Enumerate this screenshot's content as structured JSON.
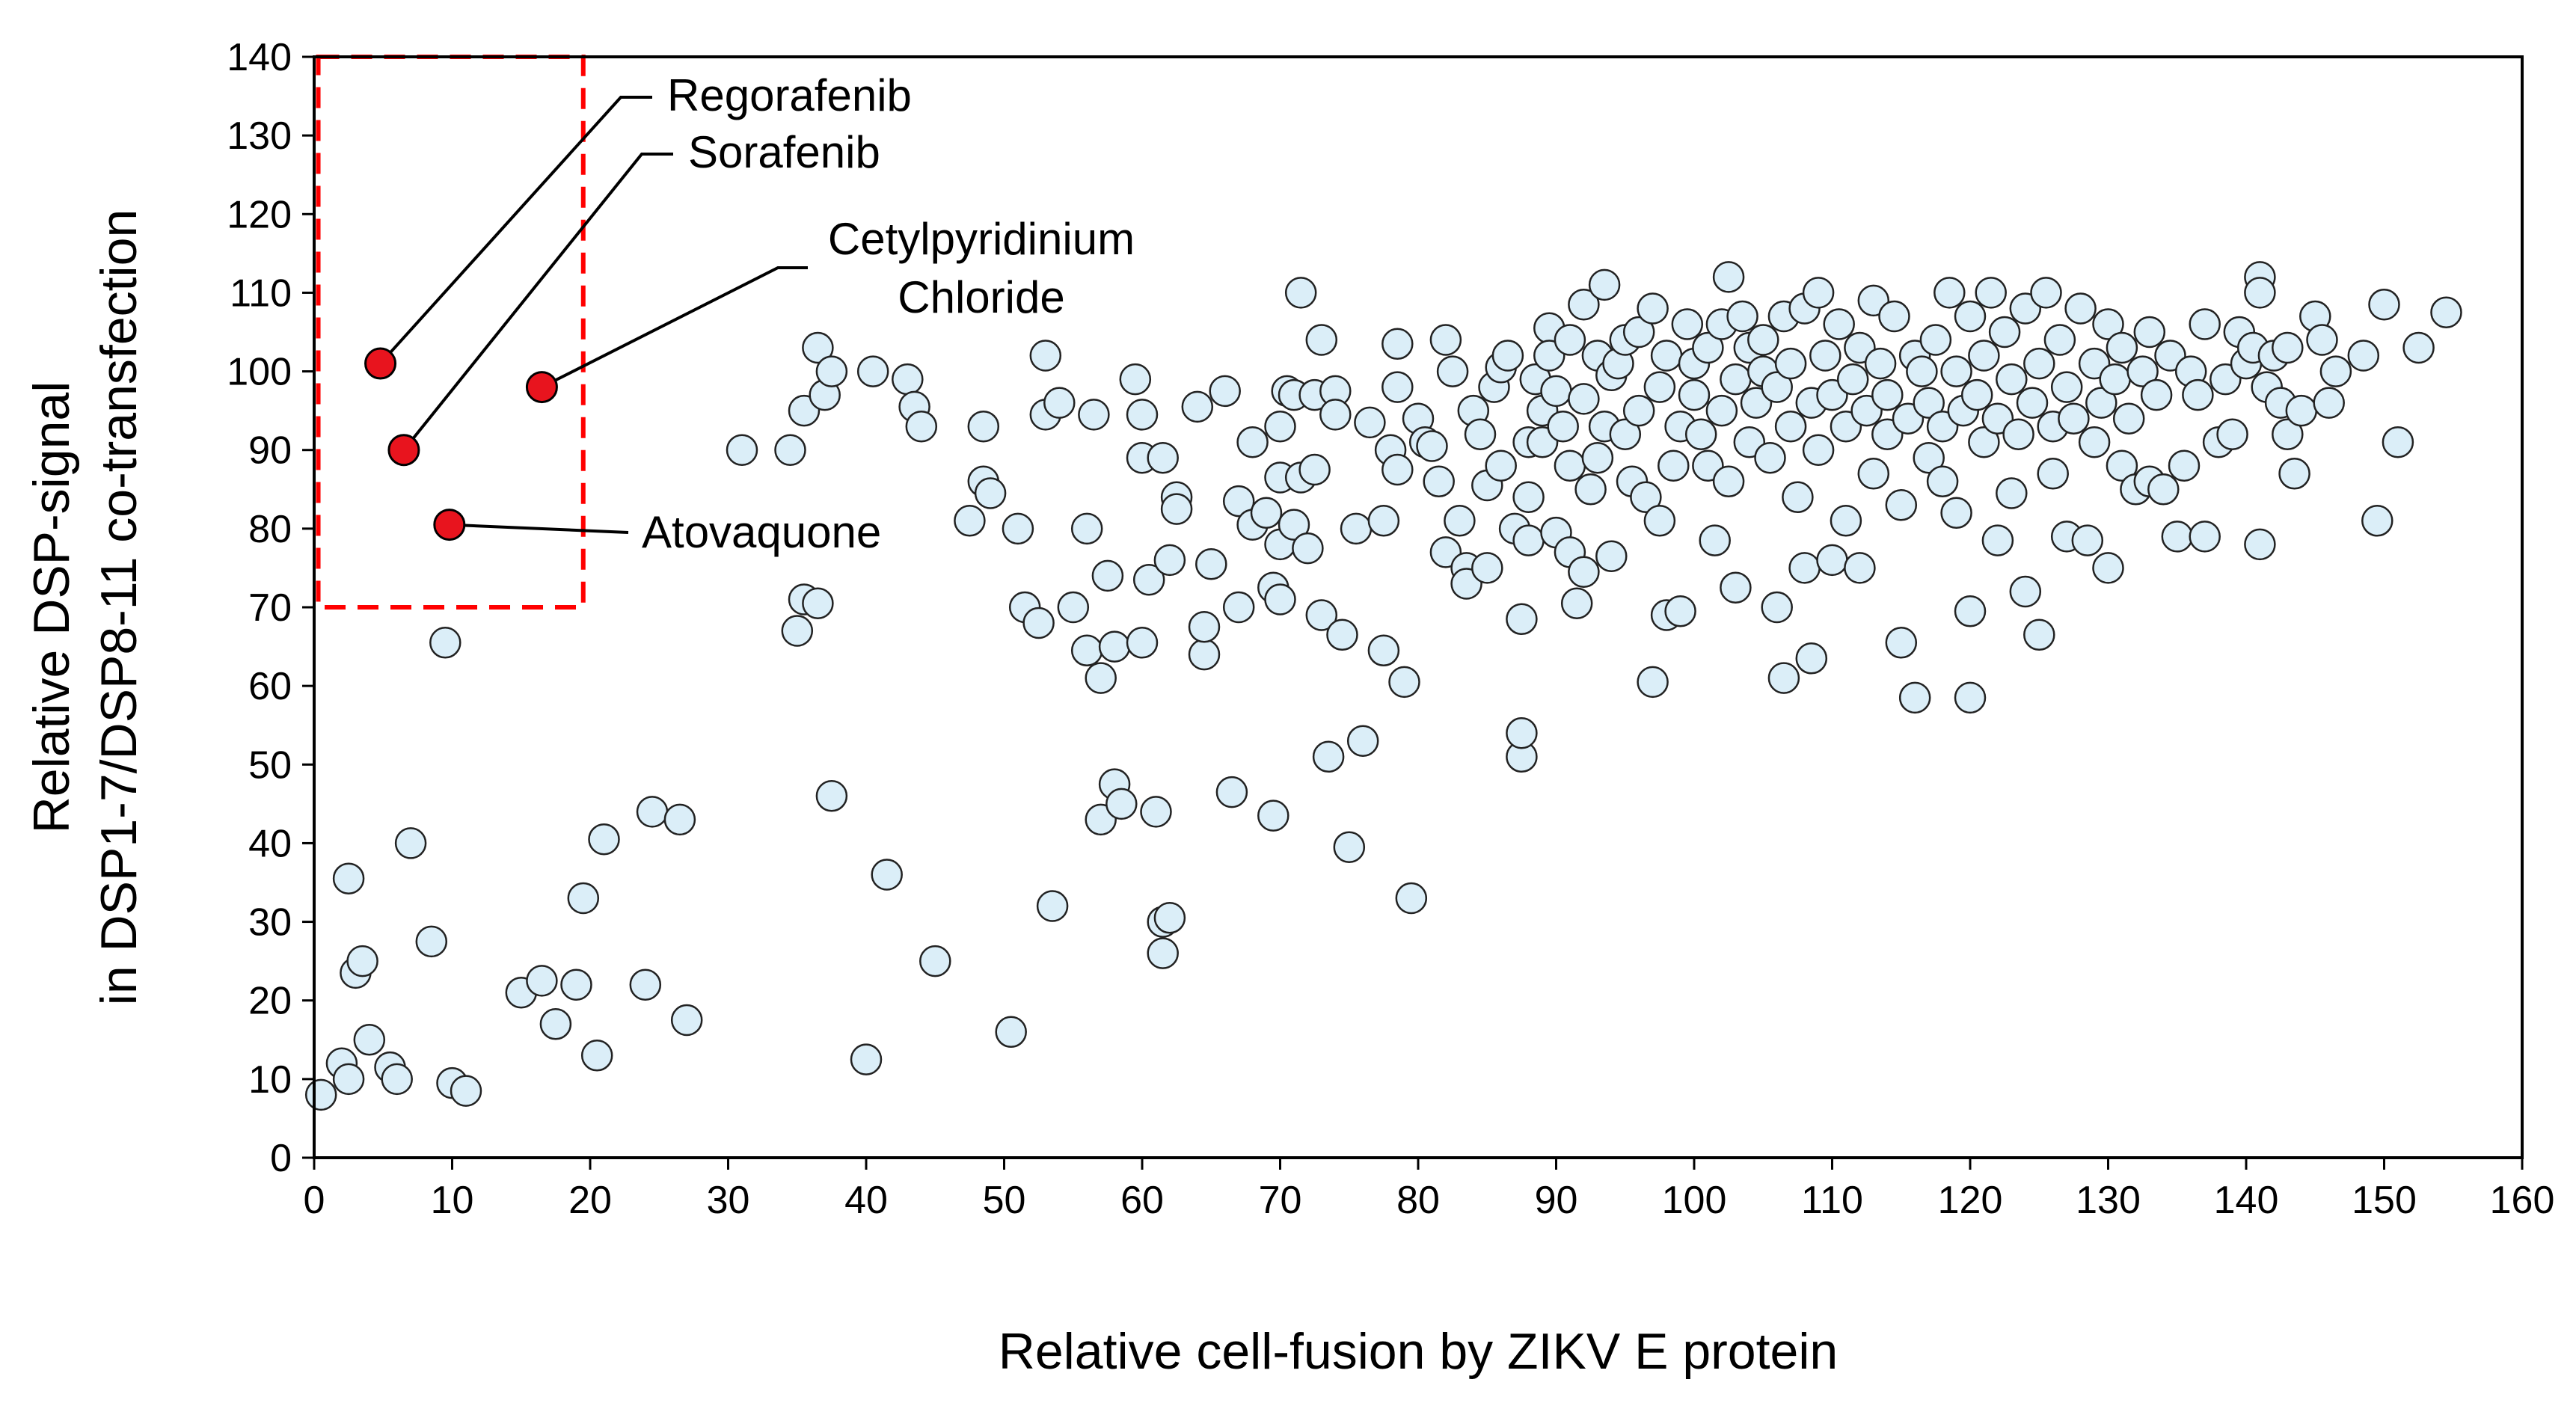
{
  "chart_data": {
    "type": "scatter",
    "title": "",
    "xlabel": "Relative cell-fusion by ZIKV E protein",
    "ylabel_line1": "Relative DSP-signal",
    "ylabel_line2": "in DSP1-7/DSP8-11 co-transfection",
    "xlim": [
      0,
      160
    ],
    "ylim": [
      0,
      140
    ],
    "xticks": [
      0,
      10,
      20,
      30,
      40,
      50,
      60,
      70,
      80,
      90,
      100,
      110,
      120,
      130,
      140,
      150,
      160
    ],
    "yticks": [
      0,
      10,
      20,
      30,
      40,
      50,
      60,
      70,
      80,
      90,
      100,
      110,
      120,
      130,
      140
    ],
    "highlight_box": {
      "x": [
        0.3,
        19.5
      ],
      "y": [
        70,
        140
      ],
      "color": "#ff0000"
    },
    "colors": {
      "points": "#dbeef8",
      "highlight": "#e8141e",
      "box": "#ff0000"
    },
    "highlighted": [
      {
        "name": "Regorafenib",
        "x": 4.8,
        "y": 101
      },
      {
        "name": "Sorafenib",
        "x": 6.5,
        "y": 90
      },
      {
        "name": "Cetylpyridinium Chloride",
        "name_line1": "Cetylpyridinium",
        "name_line2": "Chloride",
        "x": 16.5,
        "y": 98
      },
      {
        "name": "Atovaquone",
        "x": 9.8,
        "y": 80.5
      }
    ],
    "points": [
      [
        0.5,
        8
      ],
      [
        2,
        12
      ],
      [
        2.5,
        10
      ],
      [
        2.5,
        35.5
      ],
      [
        3,
        23.5
      ],
      [
        3.5,
        25
      ],
      [
        4,
        15
      ],
      [
        5.5,
        11.5
      ],
      [
        6,
        10
      ],
      [
        7,
        40
      ],
      [
        8.5,
        27.5
      ],
      [
        9.5,
        65.5
      ],
      [
        10,
        9.5
      ],
      [
        11,
        8.5
      ],
      [
        15,
        21
      ],
      [
        16.5,
        22.5
      ],
      [
        17.5,
        17
      ],
      [
        19,
        22
      ],
      [
        19.5,
        33
      ],
      [
        20.5,
        13
      ],
      [
        21,
        40.5
      ],
      [
        24,
        22
      ],
      [
        24.5,
        44
      ],
      [
        26.5,
        43
      ],
      [
        27,
        17.5
      ],
      [
        31,
        90
      ],
      [
        34.5,
        90
      ],
      [
        35,
        67
      ],
      [
        35.5,
        95
      ],
      [
        35.5,
        71
      ],
      [
        36.5,
        70.5
      ],
      [
        36.5,
        103
      ],
      [
        37,
        97
      ],
      [
        37.5,
        100
      ],
      [
        37.5,
        46
      ],
      [
        40,
        12.5
      ],
      [
        40.5,
        100
      ],
      [
        41.5,
        36
      ],
      [
        43,
        99
      ],
      [
        43.5,
        95.5
      ],
      [
        44,
        93
      ],
      [
        45,
        25
      ],
      [
        47.5,
        81
      ],
      [
        48.5,
        86
      ],
      [
        48.5,
        93
      ],
      [
        49,
        84.5
      ],
      [
        50.5,
        16
      ],
      [
        51,
        80
      ],
      [
        51.5,
        70
      ],
      [
        52.5,
        68
      ],
      [
        53,
        94.5
      ],
      [
        53,
        102
      ],
      [
        53.5,
        32
      ],
      [
        54,
        96
      ],
      [
        55,
        70
      ],
      [
        56,
        80
      ],
      [
        56,
        64.5
      ],
      [
        56.5,
        94.5
      ],
      [
        57,
        43
      ],
      [
        57,
        61
      ],
      [
        57.5,
        74
      ],
      [
        58,
        65
      ],
      [
        58,
        47.5
      ],
      [
        58.5,
        45
      ],
      [
        59.5,
        99
      ],
      [
        60,
        89
      ],
      [
        60,
        94.5
      ],
      [
        60,
        65.5
      ],
      [
        60.5,
        73.5
      ],
      [
        61,
        44
      ],
      [
        61.5,
        89
      ],
      [
        61.5,
        26
      ],
      [
        61.5,
        30
      ],
      [
        62,
        76
      ],
      [
        62,
        30.5
      ],
      [
        62.5,
        84
      ],
      [
        62.5,
        82.5
      ],
      [
        64,
        95.5
      ],
      [
        64.5,
        64
      ],
      [
        64.5,
        67.5
      ],
      [
        65,
        75.5
      ],
      [
        66,
        97.5
      ],
      [
        66.5,
        46.5
      ],
      [
        67,
        70
      ],
      [
        67,
        83.5
      ],
      [
        68,
        91
      ],
      [
        68,
        80.5
      ],
      [
        69,
        82
      ],
      [
        69.5,
        72.5
      ],
      [
        69.5,
        43.5
      ],
      [
        70,
        71
      ],
      [
        70,
        78
      ],
      [
        70,
        86.5
      ],
      [
        70,
        93
      ],
      [
        70.5,
        97.5
      ],
      [
        71,
        97
      ],
      [
        71,
        80.5
      ],
      [
        71.5,
        110
      ],
      [
        71.5,
        86.5
      ],
      [
        72,
        77.5
      ],
      [
        72.5,
        97
      ],
      [
        72.5,
        87.5
      ],
      [
        73,
        104
      ],
      [
        73,
        69
      ],
      [
        73.5,
        51
      ],
      [
        74,
        97.5
      ],
      [
        74,
        94.5
      ],
      [
        74.5,
        66.5
      ],
      [
        75,
        39.5
      ],
      [
        75.5,
        80
      ],
      [
        76,
        53
      ],
      [
        76.5,
        93.5
      ],
      [
        77.5,
        81
      ],
      [
        77.5,
        64.5
      ],
      [
        78,
        90
      ],
      [
        78.5,
        98
      ],
      [
        78.5,
        103.5
      ],
      [
        78.5,
        87.5
      ],
      [
        79,
        60.5
      ],
      [
        79.5,
        33
      ],
      [
        80,
        94
      ],
      [
        80.5,
        91
      ],
      [
        81,
        90.5
      ],
      [
        81.5,
        86
      ],
      [
        82,
        104
      ],
      [
        82,
        77
      ],
      [
        82.5,
        100
      ],
      [
        83,
        81
      ],
      [
        83.5,
        75
      ],
      [
        83.5,
        73
      ],
      [
        84,
        95
      ],
      [
        84.5,
        92
      ],
      [
        85,
        75
      ],
      [
        85,
        85.5
      ],
      [
        85.5,
        98
      ],
      [
        86,
        88
      ],
      [
        86,
        100.5
      ],
      [
        86.5,
        102
      ],
      [
        87,
        80
      ],
      [
        87.5,
        51
      ],
      [
        87.5,
        54
      ],
      [
        87.5,
        68.5
      ],
      [
        88,
        91
      ],
      [
        88,
        78.5
      ],
      [
        88,
        84
      ],
      [
        88.5,
        99
      ],
      [
        89,
        95
      ],
      [
        89,
        91
      ],
      [
        89.5,
        105.5
      ],
      [
        89.5,
        102
      ],
      [
        90,
        97.5
      ],
      [
        90,
        79.5
      ],
      [
        90.5,
        93
      ],
      [
        91,
        77
      ],
      [
        91,
        104
      ],
      [
        91,
        88
      ],
      [
        91.5,
        70.5
      ],
      [
        92,
        74.5
      ],
      [
        92,
        96.5
      ],
      [
        92,
        108.5
      ],
      [
        92.5,
        85
      ],
      [
        93,
        102
      ],
      [
        93,
        89
      ],
      [
        93.5,
        93
      ],
      [
        93.5,
        111
      ],
      [
        94,
        76.5
      ],
      [
        94,
        99.5
      ],
      [
        94.5,
        101
      ],
      [
        95,
        92
      ],
      [
        95,
        104
      ],
      [
        95.5,
        86
      ],
      [
        96,
        105
      ],
      [
        96,
        95
      ],
      [
        96.5,
        84
      ],
      [
        97,
        108
      ],
      [
        97,
        60.5
      ],
      [
        97.5,
        98
      ],
      [
        97.5,
        81
      ],
      [
        98,
        102
      ],
      [
        98,
        69
      ],
      [
        98.5,
        88
      ],
      [
        99,
        93
      ],
      [
        99,
        69.5
      ],
      [
        99.5,
        106
      ],
      [
        100,
        97
      ],
      [
        100,
        101
      ],
      [
        100.5,
        92
      ],
      [
        101,
        88
      ],
      [
        101,
        103
      ],
      [
        101.5,
        78.5
      ],
      [
        102,
        95
      ],
      [
        102,
        106
      ],
      [
        102.5,
        112
      ],
      [
        102.5,
        86
      ],
      [
        103,
        99
      ],
      [
        103,
        72.5
      ],
      [
        103.5,
        107
      ],
      [
        104,
        91
      ],
      [
        104,
        103
      ],
      [
        104.5,
        96
      ],
      [
        105,
        100
      ],
      [
        105,
        104
      ],
      [
        105.5,
        89
      ],
      [
        106,
        98
      ],
      [
        106,
        70
      ],
      [
        106.5,
        107
      ],
      [
        106.5,
        61
      ],
      [
        107,
        93
      ],
      [
        107,
        101
      ],
      [
        107.5,
        84
      ],
      [
        108,
        108
      ],
      [
        108,
        75
      ],
      [
        108.5,
        96
      ],
      [
        108.5,
        63.5
      ],
      [
        109,
        110
      ],
      [
        109,
        90
      ],
      [
        109.5,
        102
      ],
      [
        110,
        76
      ],
      [
        110,
        97
      ],
      [
        110.5,
        106
      ],
      [
        111,
        93
      ],
      [
        111,
        81
      ],
      [
        111.5,
        99
      ],
      [
        112,
        103
      ],
      [
        112,
        75
      ],
      [
        112.5,
        95
      ],
      [
        113,
        109
      ],
      [
        113,
        87
      ],
      [
        113.5,
        101
      ],
      [
        114,
        92
      ],
      [
        114,
        97
      ],
      [
        114.5,
        107
      ],
      [
        115,
        83
      ],
      [
        115,
        65.5
      ],
      [
        115.5,
        94
      ],
      [
        116,
        102
      ],
      [
        116,
        58.5
      ],
      [
        116.5,
        100
      ],
      [
        117,
        89
      ],
      [
        117,
        96
      ],
      [
        117.5,
        104
      ],
      [
        118,
        86
      ],
      [
        118,
        93
      ],
      [
        118.5,
        110
      ],
      [
        119,
        100
      ],
      [
        119,
        82
      ],
      [
        119.5,
        95
      ],
      [
        120,
        69.5
      ],
      [
        120,
        107
      ],
      [
        120,
        58.5
      ],
      [
        120.5,
        97
      ],
      [
        121,
        91
      ],
      [
        121,
        102
      ],
      [
        121.5,
        110
      ],
      [
        122,
        78.5
      ],
      [
        122,
        94
      ],
      [
        122.5,
        105
      ],
      [
        123,
        99
      ],
      [
        123,
        84.5
      ],
      [
        123.5,
        92
      ],
      [
        124,
        108
      ],
      [
        124,
        72
      ],
      [
        124.5,
        96
      ],
      [
        125,
        66.5
      ],
      [
        125,
        101
      ],
      [
        125.5,
        110
      ],
      [
        126,
        93
      ],
      [
        126,
        87
      ],
      [
        126.5,
        104
      ],
      [
        127,
        79
      ],
      [
        127,
        98
      ],
      [
        127.5,
        94
      ],
      [
        128,
        108
      ],
      [
        128.5,
        78.5
      ],
      [
        129,
        101
      ],
      [
        129,
        91
      ],
      [
        129.5,
        96
      ],
      [
        130,
        75
      ],
      [
        130,
        106
      ],
      [
        130.5,
        99
      ],
      [
        131,
        88
      ],
      [
        131,
        103
      ],
      [
        131.5,
        94
      ],
      [
        132,
        85
      ],
      [
        132.5,
        100
      ],
      [
        133,
        105
      ],
      [
        133,
        86
      ],
      [
        133.5,
        97
      ],
      [
        134,
        85
      ],
      [
        134.5,
        102
      ],
      [
        135,
        79
      ],
      [
        135.5,
        88
      ],
      [
        136,
        100
      ],
      [
        136.5,
        97
      ],
      [
        137,
        79
      ],
      [
        137,
        106
      ],
      [
        138,
        91
      ],
      [
        138.5,
        99
      ],
      [
        139,
        92
      ],
      [
        139.5,
        105
      ],
      [
        140,
        101
      ],
      [
        140.5,
        103
      ],
      [
        141,
        112
      ],
      [
        141,
        110
      ],
      [
        141,
        78
      ],
      [
        141.5,
        98
      ],
      [
        142,
        102
      ],
      [
        142.5,
        96
      ],
      [
        143,
        103
      ],
      [
        143,
        92
      ],
      [
        143.5,
        87
      ],
      [
        144,
        95
      ],
      [
        145,
        107
      ],
      [
        145.5,
        104
      ],
      [
        146,
        96
      ],
      [
        146.5,
        100
      ],
      [
        148.5,
        102
      ],
      [
        149.5,
        81
      ],
      [
        150,
        108.5
      ],
      [
        151,
        91
      ],
      [
        152.5,
        103
      ],
      [
        154.5,
        107.5
      ]
    ]
  }
}
